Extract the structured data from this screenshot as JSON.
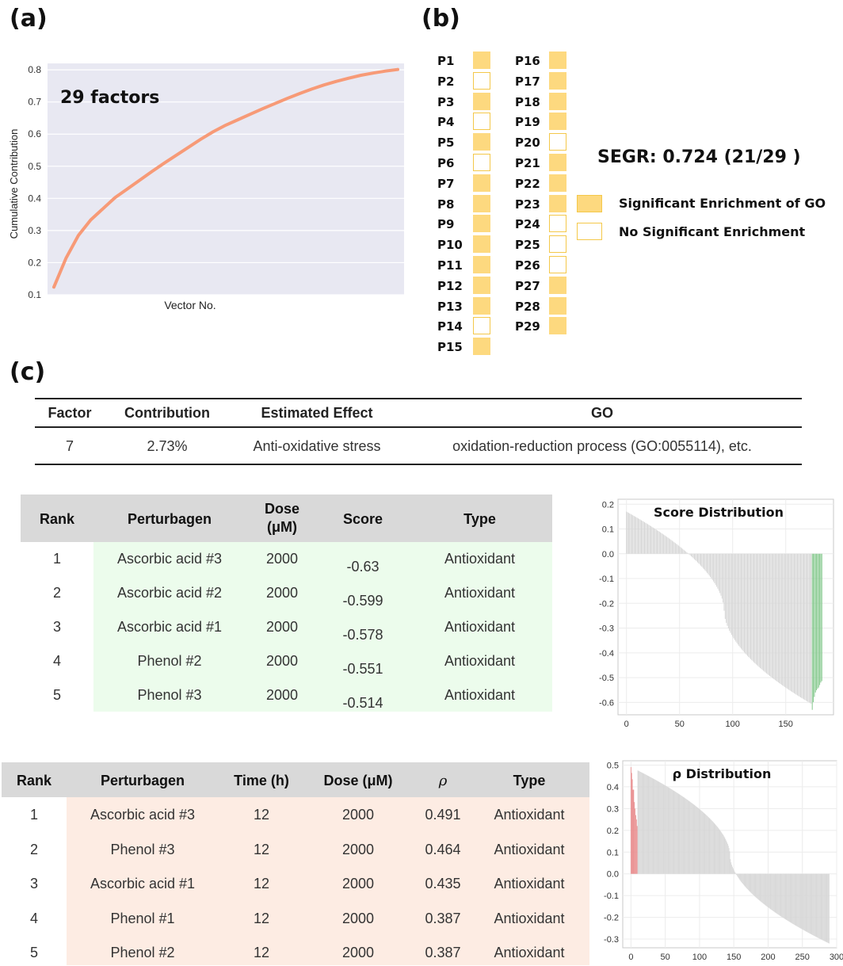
{
  "panels": {
    "a": "(a)",
    "b": "(b)",
    "c": "(c)"
  },
  "colors": {
    "line": "#f79a77",
    "plot_bg": "#e8e8f2",
    "sig_fill": "#fdd97f",
    "sig_border": "#f4c84a",
    "green_bg": "#ecfcec",
    "peach_bg": "#fdece3",
    "header_gray": "#d9d9d9",
    "bar_gray": "#d6d6d6",
    "bar_green": "#86c98e",
    "bar_red": "#e8898a"
  },
  "chart_a": {
    "annotation": "29 factors",
    "ylabel": "Cumulative Contribution",
    "xlabel": "Vector No."
  },
  "panel_b": {
    "segr": "SEGR: 0.724 (21/29 )",
    "legend": {
      "significant": "Significant Enrichment of GO",
      "not_significant": "No Significant Enrichment"
    },
    "factors": [
      {
        "name": "P1",
        "sig": true
      },
      {
        "name": "P2",
        "sig": false
      },
      {
        "name": "P3",
        "sig": true
      },
      {
        "name": "P4",
        "sig": false
      },
      {
        "name": "P5",
        "sig": true
      },
      {
        "name": "P6",
        "sig": false
      },
      {
        "name": "P7",
        "sig": true
      },
      {
        "name": "P8",
        "sig": true
      },
      {
        "name": "P9",
        "sig": true
      },
      {
        "name": "P10",
        "sig": true
      },
      {
        "name": "P11",
        "sig": true
      },
      {
        "name": "P12",
        "sig": true
      },
      {
        "name": "P13",
        "sig": true
      },
      {
        "name": "P14",
        "sig": false
      },
      {
        "name": "P15",
        "sig": true
      },
      {
        "name": "P16",
        "sig": true
      },
      {
        "name": "P17",
        "sig": true
      },
      {
        "name": "P18",
        "sig": true
      },
      {
        "name": "P19",
        "sig": true
      },
      {
        "name": "P20",
        "sig": false
      },
      {
        "name": "P21",
        "sig": true
      },
      {
        "name": "P22",
        "sig": true
      },
      {
        "name": "P23",
        "sig": true
      },
      {
        "name": "P24",
        "sig": false
      },
      {
        "name": "P25",
        "sig": false
      },
      {
        "name": "P26",
        "sig": false
      },
      {
        "name": "P27",
        "sig": true
      },
      {
        "name": "P28",
        "sig": true
      },
      {
        "name": "P29",
        "sig": true
      }
    ]
  },
  "table_c": {
    "headers": [
      "Factor",
      "Contribution",
      "Estimated Effect",
      "GO"
    ],
    "row": [
      "7",
      "2.73%",
      "Anti-oxidative stress",
      "oxidation-reduction process (GO:0055114), etc."
    ]
  },
  "table_score": {
    "headers": [
      "Rank",
      "Perturbagen",
      "Dose",
      "(μM)",
      "Score",
      "Type"
    ],
    "rows": [
      [
        "1",
        "Ascorbic acid #3",
        "2000",
        "-0.63",
        "Antioxidant"
      ],
      [
        "2",
        "Ascorbic acid #2",
        "2000",
        "-0.599",
        "Antioxidant"
      ],
      [
        "3",
        "Ascorbic acid #1",
        "2000",
        "-0.578",
        "Antioxidant"
      ],
      [
        "4",
        "Phenol #2",
        "2000",
        "-0.551",
        "Antioxidant"
      ],
      [
        "5",
        "Phenol #3",
        "2000",
        "-0.514",
        "Antioxidant"
      ]
    ]
  },
  "table_rho": {
    "headers": [
      "Rank",
      "Perturbagen",
      "Time (h)",
      "Dose (μM)",
      "ρ",
      "Type"
    ],
    "rows": [
      [
        "1",
        "Ascorbic acid #3",
        "12",
        "2000",
        "0.491",
        "Antioxidant"
      ],
      [
        "2",
        "Phenol #3",
        "12",
        "2000",
        "0.464",
        "Antioxidant"
      ],
      [
        "3",
        "Ascorbic acid #1",
        "12",
        "2000",
        "0.435",
        "Antioxidant"
      ],
      [
        "4",
        "Phenol #1",
        "12",
        "2000",
        "0.387",
        "Antioxidant"
      ],
      [
        "5",
        "Phenol #2",
        "12",
        "2000",
        "0.387",
        "Antioxidant"
      ]
    ]
  },
  "chart_data": [
    {
      "type": "line",
      "title": "",
      "annotation": "29 factors",
      "xlabel": "Vector No.",
      "ylabel": "Cumulative Contribution",
      "x": [
        1,
        2,
        3,
        4,
        5,
        6,
        7,
        8,
        9,
        10,
        11,
        12,
        13,
        14,
        15,
        16,
        17,
        18,
        19,
        20,
        21,
        22,
        23,
        24,
        25,
        26,
        27,
        28,
        29
      ],
      "y": [
        0.124,
        0.215,
        0.285,
        0.333,
        0.368,
        0.403,
        0.43,
        0.457,
        0.484,
        0.51,
        0.535,
        0.56,
        0.585,
        0.608,
        0.628,
        0.645,
        0.662,
        0.679,
        0.695,
        0.711,
        0.726,
        0.74,
        0.753,
        0.764,
        0.774,
        0.783,
        0.79,
        0.796,
        0.801
      ],
      "ylim": [
        0.1,
        0.82
      ],
      "yticks": [
        0.1,
        0.2,
        0.3,
        0.4,
        0.5,
        0.6,
        0.7,
        0.8
      ],
      "grid": true
    },
    {
      "type": "bar",
      "title": "Score Distribution",
      "n_bars": 185,
      "values_description": "sorted scores descending from 0.17 to -0.63; last 10 highlighted",
      "start_value": 0.17,
      "end_value": -0.63,
      "highlight_last": [
        -0.514,
        -0.52,
        -0.53,
        -0.54,
        -0.545,
        -0.551,
        -0.56,
        -0.578,
        -0.599,
        -0.63
      ],
      "ylim": [
        -0.65,
        0.22
      ],
      "yticks": [
        0.2,
        0.1,
        0.0,
        -0.1,
        -0.2,
        -0.3,
        -0.4,
        -0.5,
        -0.6
      ],
      "xlim": [
        -8,
        195
      ],
      "xticks": [
        0,
        50,
        100,
        150
      ],
      "grid": true
    },
    {
      "type": "bar",
      "title": "ρ Distribution",
      "n_bars": 290,
      "start_value": 0.491,
      "end_value": -0.32,
      "highlight_first": [
        0.491,
        0.464,
        0.435,
        0.387,
        0.387,
        0.33,
        0.3,
        0.27,
        0.25,
        0.22
      ],
      "ylim": [
        -0.34,
        0.52
      ],
      "yticks": [
        0.5,
        0.4,
        0.3,
        0.2,
        0.1,
        0.0,
        -0.1,
        -0.2,
        -0.3
      ],
      "xlim": [
        -12,
        300
      ],
      "xticks": [
        0,
        50,
        100,
        150,
        200,
        250,
        300
      ],
      "grid": true
    }
  ]
}
